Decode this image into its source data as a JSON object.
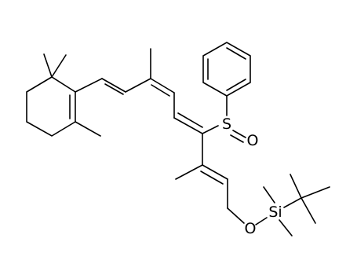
{
  "atoms": {
    "sulfur": "S",
    "sulfoxide_oxygen": "O",
    "ether_oxygen": "O",
    "silicon": "Si"
  }
}
